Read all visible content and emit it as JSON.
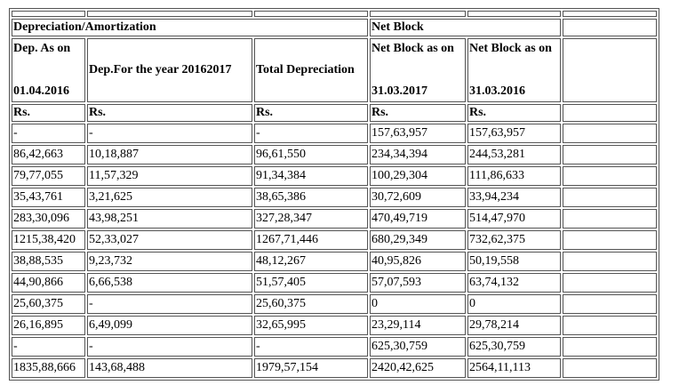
{
  "group_headers": {
    "depreciation": "Depreciation/Amortization",
    "net_block": "Net Block"
  },
  "headers": {
    "dep_as_on_line1": "Dep. As on",
    "dep_as_on_line2": "01.04.2016",
    "dep_year": "Dep.For the year 20162017",
    "total_dep": "Total Depreciation",
    "nb_2017_line1": "Net Block as on",
    "nb_2017_line2": "31.03.2017",
    "nb_2016_line1": "Net Block as on",
    "nb_2016_line2": "31.03.2016"
  },
  "units": [
    "Rs.",
    "Rs.",
    "Rs.",
    "Rs.",
    "Rs."
  ],
  "rows": [
    [
      "-",
      "-",
      "-",
      "157,63,957",
      "157,63,957"
    ],
    [
      "86,42,663",
      "10,18,887",
      "96,61,550",
      "234,34,394",
      "244,53,281"
    ],
    [
      "79,77,055",
      "11,57,329",
      "91,34,384",
      "100,29,304",
      "111,86,633"
    ],
    [
      "35,43,761",
      "3,21,625",
      "38,65,386",
      "30,72,609",
      "33,94,234"
    ],
    [
      "283,30,096",
      "43,98,251",
      "327,28,347",
      "470,49,719",
      "514,47,970"
    ],
    [
      "1215,38,420",
      "52,33,027",
      "1267,71,446",
      "680,29,349",
      "732,62,375"
    ],
    [
      "38,88,535",
      "9,23,732",
      "48,12,267",
      "40,95,826",
      "50,19,558"
    ],
    [
      "44,90,866",
      "6,66,538",
      "51,57,405",
      "57,07,593",
      "63,74,132"
    ],
    [
      "25,60,375",
      "-",
      "25,60,375",
      "0",
      "0"
    ],
    [
      "26,16,895",
      "6,49,099",
      "32,65,995",
      "23,29,114",
      "29,78,214"
    ],
    [
      "-",
      "-",
      "-",
      "625,30,759",
      "625,30,759"
    ],
    [
      "1835,88,666",
      "143,68,488",
      "1979,57,154",
      "2420,42,625",
      "2564,11,113"
    ]
  ]
}
